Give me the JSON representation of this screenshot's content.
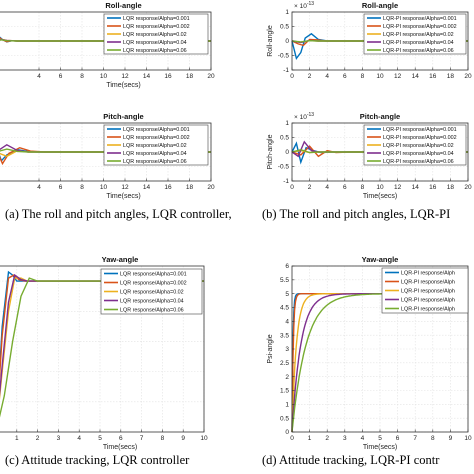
{
  "colors": [
    "#0072BD",
    "#D95319",
    "#EDB120",
    "#7E2F8E",
    "#77AC30"
  ],
  "captions": {
    "a": "(a) The roll and pitch angles, LQR controller,",
    "b": "(b) The roll and pitch angles, LQR-PI",
    "c": "(c) Attitude tracking,  LQR controller",
    "d": "(d) Attitude tracking, LQR-PI contr"
  },
  "chart_data": [
    {
      "id": "a-roll",
      "type": "line",
      "title": "Roll-angle",
      "xlabel": "Time(secs)",
      "ylabel": "",
      "xlim": [
        0,
        20
      ],
      "ylim": [
        -1,
        1
      ],
      "xticks": [
        4,
        6,
        8,
        10,
        12,
        14,
        16,
        18,
        20
      ],
      "yticks": [],
      "exponent": "",
      "legend": [
        "LQR response/Alpha=0.001",
        "LQR response/Alpha=0.002",
        "LQR response/Alpha=0.02",
        "LQR response/Alpha=0.04",
        "LQR response/Alpha=0.06"
      ],
      "series": [
        {
          "x": [
            0,
            0.3,
            0.6,
            1,
            1.5,
            2,
            20
          ],
          "y": [
            0,
            0.15,
            0.05,
            -0.03,
            0.01,
            0,
            0
          ]
        },
        {
          "x": [
            0,
            0.3,
            0.6,
            1,
            1.5,
            2,
            20
          ],
          "y": [
            0,
            0.12,
            0.04,
            -0.02,
            0.01,
            0,
            0
          ]
        },
        {
          "x": [
            0,
            0.5,
            1,
            2,
            20
          ],
          "y": [
            0,
            0.06,
            0.02,
            0,
            0
          ]
        },
        {
          "x": [
            0,
            0.5,
            1,
            2,
            20
          ],
          "y": [
            0,
            0.05,
            0.02,
            0,
            0
          ]
        },
        {
          "x": [
            0,
            0.5,
            1,
            2,
            20
          ],
          "y": [
            0,
            0.04,
            0.01,
            0,
            0
          ]
        }
      ]
    },
    {
      "id": "b-roll",
      "type": "line",
      "title": "Roll-angle",
      "xlabel": "",
      "ylabel": "Roll-angle",
      "xlim": [
        0,
        20
      ],
      "ylim": [
        -1,
        1
      ],
      "xticks": [
        0,
        2,
        4,
        6,
        8,
        10,
        12,
        14,
        16,
        18,
        20
      ],
      "yticks": [
        -1,
        -0.5,
        0,
        0.5,
        1
      ],
      "exponent": "× 10^-13",
      "legend": [
        "LQR-PI response/Alpha=0.001",
        "LQR-PI response/Alpha=0.002",
        "LQR-PI response/Alpha=0.02",
        "LQR-PI response/Alpha=0.04",
        "LQR-PI response/Alpha=0.06"
      ],
      "series": [
        {
          "x": [
            0,
            0.5,
            1,
            1.5,
            2.2,
            3,
            4,
            20
          ],
          "y": [
            0,
            -0.6,
            -0.4,
            0.1,
            0.25,
            0.05,
            0,
            0
          ]
        },
        {
          "x": [
            0,
            0.7,
            1.3,
            2,
            2.8,
            3.8,
            20
          ],
          "y": [
            0,
            -0.1,
            -0.15,
            0.05,
            0.04,
            0,
            0
          ]
        },
        {
          "x": [
            0,
            1,
            2,
            3,
            20
          ],
          "y": [
            0,
            -0.04,
            0.01,
            0,
            0
          ]
        },
        {
          "x": [
            0,
            1,
            2,
            3,
            20
          ],
          "y": [
            0,
            -0.05,
            0.02,
            0,
            0
          ]
        },
        {
          "x": [
            0,
            1,
            2,
            3,
            20
          ],
          "y": [
            0,
            -0.03,
            0.01,
            0,
            0
          ]
        }
      ]
    },
    {
      "id": "a-pitch",
      "type": "line",
      "title": "Pitch-angle",
      "xlabel": "Time(secs)",
      "ylabel": "",
      "xlim": [
        0,
        20
      ],
      "ylim": [
        -1,
        1
      ],
      "xticks": [
        4,
        6,
        8,
        10,
        12,
        14,
        16,
        18,
        20
      ],
      "yticks": [],
      "exponent": "",
      "legend": [
        "LQR response/Alpha=0.001",
        "LQR response/Alpha=0.002",
        "LQR response/Alpha=0.02",
        "LQR response/Alpha=0.04",
        "LQR response/Alpha=0.06"
      ],
      "series": [
        {
          "x": [
            0,
            0.5,
            1,
            2,
            3,
            4,
            20
          ],
          "y": [
            0.2,
            -0.3,
            -0.1,
            0.08,
            0.02,
            0,
            0
          ]
        },
        {
          "x": [
            0,
            0.6,
            1.2,
            2.2,
            3.2,
            4.5,
            20
          ],
          "y": [
            0.1,
            -0.4,
            -0.05,
            0.15,
            0.03,
            0,
            0
          ]
        },
        {
          "x": [
            0,
            1,
            2,
            3,
            20
          ],
          "y": [
            0,
            -0.15,
            0.05,
            0,
            0
          ]
        },
        {
          "x": [
            0,
            1,
            2,
            3,
            20
          ],
          "y": [
            0,
            0.25,
            0.05,
            0,
            0
          ]
        },
        {
          "x": [
            0,
            1,
            2,
            3,
            20
          ],
          "y": [
            0,
            0.1,
            0.02,
            0,
            0
          ]
        }
      ]
    },
    {
      "id": "b-pitch",
      "type": "line",
      "title": "Pitch-angle",
      "xlabel": "Time(secs)",
      "ylabel": "Pitch-angle",
      "xlim": [
        0,
        20
      ],
      "ylim": [
        -1,
        1
      ],
      "xticks": [
        0,
        2,
        4,
        6,
        8,
        10,
        12,
        14,
        16,
        18,
        20
      ],
      "yticks": [
        -1,
        -0.5,
        0,
        0.5,
        1
      ],
      "exponent": "× 10^-13",
      "legend": [
        "LQR-PI response/Alpha=0.001",
        "LQR-PI response/Alpha=0.002",
        "LQR-PI response/Alpha=0.02",
        "LQR-PI response/Alpha=0.04",
        "LQR-PI response/Alpha=0.06"
      ],
      "series": [
        {
          "x": [
            0,
            0.5,
            1,
            1.6,
            2.4,
            3.3,
            4.5,
            20
          ],
          "y": [
            0,
            0.3,
            -0.35,
            0.15,
            0.05,
            -0.02,
            0,
            0
          ]
        },
        {
          "x": [
            0,
            1,
            2,
            3,
            4,
            5,
            6.5,
            20
          ],
          "y": [
            0,
            -0.1,
            0.2,
            -0.15,
            0.05,
            -0.02,
            0,
            0
          ]
        },
        {
          "x": [
            0,
            1,
            2,
            3,
            20
          ],
          "y": [
            0,
            0.05,
            -0.02,
            0,
            0
          ]
        },
        {
          "x": [
            0,
            0.7,
            1.4,
            2.2,
            3,
            20
          ],
          "y": [
            0,
            -0.15,
            0.35,
            0.05,
            0,
            0
          ]
        },
        {
          "x": [
            0,
            1,
            2,
            3,
            20
          ],
          "y": [
            0,
            0.08,
            -0.02,
            0,
            0
          ]
        }
      ]
    },
    {
      "id": "c-yaw",
      "type": "line",
      "title": "Yaw-angle",
      "xlabel": "Time(secs)",
      "ylabel": "",
      "xlim": [
        0,
        10
      ],
      "ylim": [
        0,
        5.5
      ],
      "xticks": [
        1,
        2,
        3,
        4,
        5,
        6,
        7,
        8,
        9,
        10
      ],
      "yticks": [],
      "exponent": "",
      "legend": [
        "LQR response/Alpha=0.001",
        "LQR response/Alpha=0.002",
        "LQR response/Alpha=0.02",
        "LQR response/Alpha=0.04",
        "LQR response/Alpha=0.06"
      ],
      "series": [
        {
          "x": [
            0,
            0.3,
            0.6,
            0.8,
            1,
            1.3,
            1.6,
            10
          ],
          "y": [
            0,
            3.5,
            5.3,
            5.2,
            5,
            5,
            5,
            5
          ]
        },
        {
          "x": [
            0,
            0.3,
            0.6,
            0.85,
            1.1,
            1.4,
            10
          ],
          "y": [
            0,
            3.2,
            5.1,
            5.2,
            5.05,
            5,
            5
          ]
        },
        {
          "x": [
            0,
            0.3,
            0.6,
            0.9,
            1.2,
            1.5,
            10
          ],
          "y": [
            0,
            2,
            4,
            5.1,
            5.1,
            5,
            5
          ]
        },
        {
          "x": [
            0,
            0.3,
            0.6,
            0.9,
            1.2,
            1.5,
            10
          ],
          "y": [
            0,
            2.2,
            4.3,
            5.2,
            5.05,
            5,
            5
          ]
        },
        {
          "x": [
            0,
            0.4,
            0.8,
            1.2,
            1.6,
            2,
            10
          ],
          "y": [
            0,
            1.2,
            3,
            4.5,
            5.1,
            5,
            5
          ]
        }
      ]
    },
    {
      "id": "d-yaw",
      "type": "line",
      "title": "Yaw-angle",
      "xlabel": "Time(secs)",
      "ylabel": "Psi-angle",
      "xlim": [
        0,
        10
      ],
      "ylim": [
        0,
        6
      ],
      "xticks": [
        0,
        1,
        2,
        3,
        4,
        5,
        6,
        7,
        8,
        9,
        10
      ],
      "yticks": [
        0,
        0.5,
        1,
        1.5,
        2,
        2.5,
        3,
        3.5,
        4,
        4.5,
        5,
        5.5,
        6
      ],
      "exponent": "",
      "legend": [
        "LQR-PI response/Alph",
        "LQR-PI response/Alph",
        "LQR-PI response/Alph",
        "LQR-PI response/Alph",
        "LQR-PI response/Alph"
      ],
      "series": [
        {
          "tau": 0.05
        },
        {
          "tau": 0.07
        },
        {
          "tau": 0.25
        },
        {
          "tau": 0.5
        },
        {
          "tau": 0.8
        }
      ]
    }
  ]
}
